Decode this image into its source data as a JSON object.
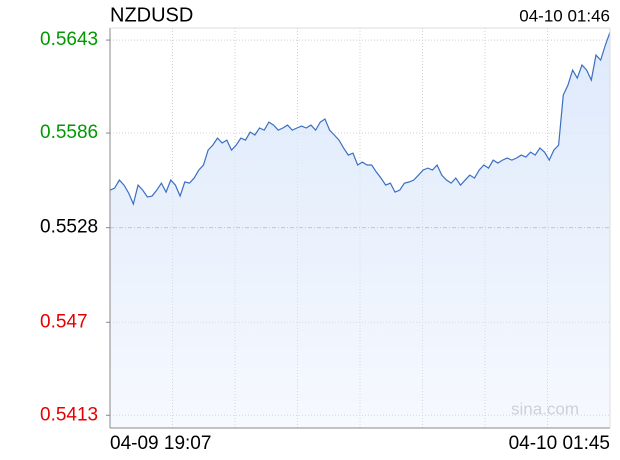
{
  "chart_data": {
    "type": "line",
    "title": "NZDUSD",
    "timestamp": "04-10 01:46",
    "watermark": "sina.com",
    "categories": [
      "04-09 19:07",
      null,
      null,
      null,
      null,
      null,
      null,
      null,
      null,
      null,
      null,
      null,
      null,
      null,
      null,
      null,
      null,
      null,
      null,
      null,
      null,
      null,
      null,
      null,
      null,
      null,
      null,
      null,
      null,
      null,
      null,
      null,
      null,
      null,
      null,
      null,
      null,
      null,
      null,
      null,
      null,
      null,
      null,
      null,
      null,
      null,
      null,
      null,
      null,
      null,
      null,
      null,
      null,
      null,
      null,
      null,
      null,
      null,
      null,
      null,
      null,
      null,
      null,
      null,
      null,
      null,
      null,
      null,
      null,
      null,
      null,
      null,
      null,
      null,
      null,
      null,
      null,
      null,
      null,
      null,
      null,
      null,
      null,
      null,
      null,
      null,
      null,
      null,
      null,
      null,
      null,
      null,
      null,
      null,
      null,
      null,
      null,
      null,
      null,
      null,
      null,
      null,
      null,
      null,
      null,
      null,
      null,
      "04-10 01:45"
    ],
    "series": [
      {
        "name": "NZDUSD",
        "color": "#3b6fc5",
        "values": [
          0.5551,
          0.55523,
          0.55572,
          0.55541,
          0.55492,
          0.55425,
          0.55541,
          0.5551,
          0.55468,
          0.55474,
          0.5551,
          0.55553,
          0.55498,
          0.55572,
          0.55541,
          0.55474,
          0.5556,
          0.55553,
          0.55584,
          0.55633,
          0.55664,
          0.55756,
          0.55786,
          0.55829,
          0.55799,
          0.55817,
          0.55756,
          0.55786,
          0.55829,
          0.55817,
          0.55866,
          0.55848,
          0.55891,
          0.55878,
          0.55927,
          0.55909,
          0.55878,
          0.55891,
          0.55909,
          0.55878,
          0.55891,
          0.55903,
          0.55891,
          0.55909,
          0.55878,
          0.55927,
          0.55946,
          0.55878,
          0.55848,
          0.55817,
          0.55768,
          0.55725,
          0.55737,
          0.55664,
          0.55682,
          0.55664,
          0.55664,
          0.55621,
          0.55584,
          0.55541,
          0.55553,
          0.55498,
          0.5551,
          0.55553,
          0.5556,
          0.55572,
          0.55602,
          0.55633,
          0.55645,
          0.55633,
          0.55664,
          0.55602,
          0.55572,
          0.55553,
          0.55584,
          0.55541,
          0.55572,
          0.55602,
          0.55584,
          0.55633,
          0.55664,
          0.55645,
          0.55694,
          0.55676,
          0.55694,
          0.55707,
          0.55694,
          0.55707,
          0.55725,
          0.55713,
          0.55743,
          0.55725,
          0.55768,
          0.55743,
          0.55694,
          0.55756,
          0.55786,
          0.56093,
          0.56154,
          0.56246,
          0.56197,
          0.56277,
          0.56246,
          0.56185,
          0.56338,
          0.56307,
          0.56399,
          0.56479
        ]
      }
    ],
    "ylim": [
      0.54052,
      0.56504
    ],
    "yticks": [
      0.5643,
      0.5586,
      0.5528,
      0.547,
      0.5413
    ],
    "ytick_colors": [
      "#009900",
      "#009900",
      "#000000",
      "#e60000",
      "#e60000"
    ],
    "area_color": "#dce8fb",
    "grid": true
  }
}
